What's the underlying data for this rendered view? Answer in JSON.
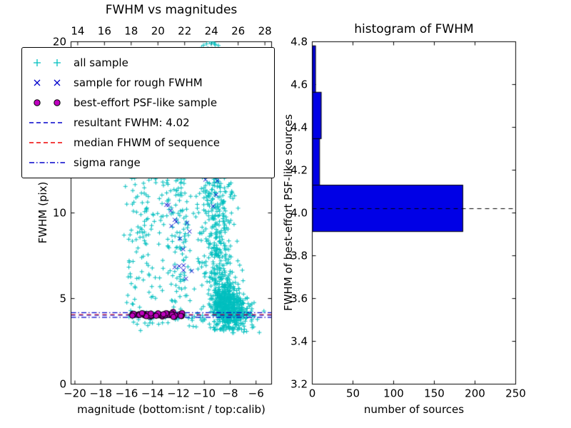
{
  "chart_data": [
    {
      "type": "scatter",
      "title": "FWHM vs magnitudes",
      "xlabel": "magnitude (bottom:isnt / top:calib)",
      "ylabel": "FWHM (pix)",
      "xlim": [
        -20.3,
        -4.8
      ],
      "ylim": [
        0,
        20
      ],
      "top_xlim": [
        13.5,
        28.5
      ],
      "x_ticks": {
        "values": [
          -20,
          -18,
          -16,
          -14,
          -12,
          -10,
          -8,
          -6
        ],
        "labels": [
          "−20",
          "−18",
          "−16",
          "−14",
          "−12",
          "−10",
          "−8",
          "−6"
        ]
      },
      "top_ticks": {
        "values": [
          14,
          16,
          18,
          20,
          22,
          24,
          26,
          28
        ],
        "labels": [
          "14",
          "16",
          "18",
          "20",
          "22",
          "24",
          "26",
          "28"
        ]
      },
      "y_ticks": {
        "values": [
          0,
          5,
          10,
          15,
          20
        ],
        "labels": [
          "0",
          "5",
          "10",
          "15",
          "20"
        ]
      },
      "lines": [
        {
          "name": "sigma-upper-line",
          "y": 4.17,
          "dash": "dashdot",
          "color": "#0000cc"
        },
        {
          "name": "sigma-lower-line",
          "y": 3.9,
          "dash": "dashdot",
          "color": "#0000cc"
        },
        {
          "name": "median-fwhm-line",
          "y": 4.06,
          "dash": "dashed",
          "color": "#ee0000"
        },
        {
          "name": "resultant-fwhm-line",
          "y": 4.02,
          "dash": "dashed",
          "color": "#0000cc"
        }
      ],
      "scatter": {
        "seed": 11,
        "groups": [
          {
            "name": "all-sample",
            "marker": "plus",
            "color": "#00bfbf",
            "clusters": [
              {
                "n": 480,
                "x": [
                  "g",
                  -8.45,
                  0.5
                ],
                "y": [
                  "g",
                  4.7,
                  0.75
                ],
                "clip": [
                  -20,
                  -4.9,
                  3.2,
                  7.2
                ]
              },
              {
                "n": 220,
                "x": [
                  "g",
                  -8.8,
                  0.55
                ],
                "y": [
                  "u",
                  5.5,
                  12.5
                ]
              },
              {
                "n": 110,
                "x": [
                  "g",
                  -9.4,
                  0.45
                ],
                "y": [
                  "u",
                  6,
                  14
                ]
              },
              {
                "n": 70,
                "x": [
                  "g",
                  -9.5,
                  0.3
                ],
                "y": [
                  "u",
                  11,
                  20
                ]
              },
              {
                "n": 30,
                "x": [
                  "g",
                  -9.7,
                  0.35
                ],
                "y": [
                  "g",
                  19.2,
                  0.7
                ],
                "clip": [
                  -20,
                  -4.9,
                  0,
                  20
                ]
              },
              {
                "n": 140,
                "x": [
                  "u",
                  -16,
                  -10
                ],
                "y": [
                  "u",
                  4,
                  12.5
                ]
              },
              {
                "n": 70,
                "x": [
                  "g",
                  -12,
                  0.4
                ],
                "y": [
                  "u",
                  4.8,
                  12
                ]
              },
              {
                "n": 45,
                "x": [
                  "g",
                  -14.6,
                  0.8
                ],
                "y": [
                  "g",
                  8.5,
                  2
                ]
              },
              {
                "n": 210,
                "x": [
                  "g",
                  -7.5,
                  0.75
                ],
                "y": [
                  "g",
                  4.1,
                  0.55
                ],
                "clip": [
                  -9.2,
                  -5,
                  3,
                  5.8
                ]
              },
              {
                "n": 30,
                "x": [
                  "u",
                  -16,
                  -9.5
                ],
                "y": [
                  "u",
                  3.3,
                  3.95
                ]
              },
              {
                "n": 60,
                "x": [
                  "u",
                  -15.8,
                  -11.9
                ],
                "y": [
                  "g",
                  4.06,
                  0.07
                ]
              },
              {
                "n": 15,
                "x": [
                  "g",
                  -8.3,
                  0.5
                ],
                "y": [
                  "u",
                  12,
                  16
                ]
              }
            ]
          },
          {
            "name": "rough-fwhm-sample",
            "marker": "cross",
            "color": "#0000cc",
            "clusters": [
              {
                "n": 13,
                "x": [
                  "g",
                  -11.85,
                  0.4
                ],
                "y": [
                  "u",
                  6,
                  9.6
                ]
              },
              {
                "n": 3,
                "x": [
                  "g",
                  -12.6,
                  0.25
                ],
                "y": [
                  "u",
                  9.9,
                  11.2
                ]
              },
              {
                "n": 4,
                "x": [
                  "g",
                  -9.4,
                  0.3
                ],
                "y": [
                  "g",
                  11.6,
                  0.6
                ]
              }
            ]
          },
          {
            "name": "psf-like-sample",
            "marker": "circle",
            "fill": "#bf00bf",
            "edge": "#000000",
            "clusters": [
              {
                "n": 55,
                "x": [
                  "u",
                  -15.6,
                  -12.1
                ],
                "y": [
                  "g",
                  4.06,
                  0.055
                ]
              },
              {
                "n": 6,
                "x": [
                  "u",
                  -12.1,
                  -11.7
                ],
                "y": [
                  "g",
                  4.05,
                  0.05
                ]
              }
            ]
          }
        ]
      }
    },
    {
      "type": "bar",
      "orientation": "horizontal",
      "title": "histogram of FWHM",
      "xlabel": "number of sources",
      "ylabel": "FWHM of best-effort PSF-like sources",
      "xlim": [
        0,
        250
      ],
      "ylim": [
        3.2,
        4.8
      ],
      "x_ticks": {
        "values": [
          0,
          50,
          100,
          150,
          200,
          250
        ],
        "labels": [
          "0",
          "50",
          "100",
          "150",
          "200",
          "250"
        ]
      },
      "y_ticks": {
        "values": [
          3.2,
          3.4,
          3.6,
          3.8,
          4.0,
          4.2,
          4.4,
          4.6,
          4.8
        ],
        "labels": [
          "3.2",
          "3.4",
          "3.6",
          "3.8",
          "4.0",
          "4.2",
          "4.4",
          "4.6",
          "4.8"
        ]
      },
      "bins": {
        "edges": [
          3.913,
          4.13,
          4.347,
          4.564,
          4.781
        ],
        "counts": [
          185,
          9,
          11,
          4
        ]
      },
      "bar_color": "#0000e6",
      "bar_edge": "#000000",
      "median_line": {
        "y": 4.02,
        "dash": "dashed",
        "color": "#000000"
      }
    }
  ],
  "legend": {
    "items": [
      {
        "label": "all sample",
        "marker": "plus",
        "color": "#00bfbf",
        "icon": "plus-marker-icon"
      },
      {
        "label": "sample for rough FWHM",
        "marker": "cross",
        "color": "#0000cc",
        "icon": "x-marker-icon"
      },
      {
        "label": "best-effort PSF-like sample",
        "marker": "circle",
        "color": "#bf00bf",
        "edge": "#000000",
        "icon": "circle-marker-icon"
      },
      {
        "label": "resultant FWHM: 4.02",
        "marker": "dashed",
        "color": "#0000cc",
        "icon": "dashed-line-icon"
      },
      {
        "label": "median FHWM of sequence",
        "marker": "dashed",
        "color": "#ee0000",
        "icon": "dashed-line-icon"
      },
      {
        "label": "sigma range",
        "marker": "dashdot",
        "color": "#0000cc",
        "icon": "dashdot-line-icon"
      }
    ]
  }
}
